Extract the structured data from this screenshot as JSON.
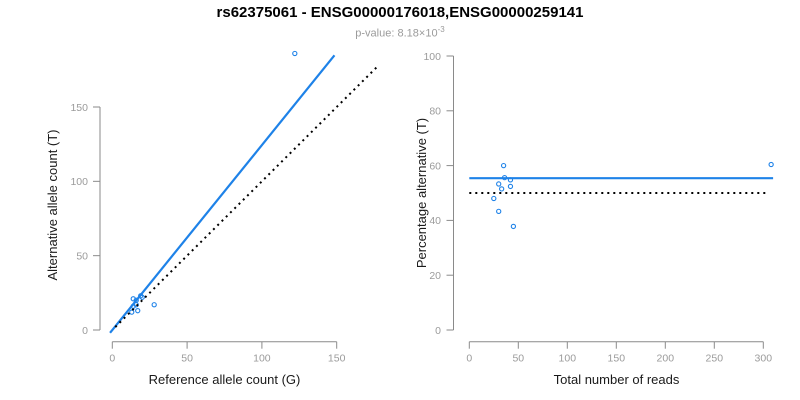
{
  "header": {
    "title": "rs62375061 - ENSG00000176018,ENSG00000259141",
    "pvalue_label": "p-value: ",
    "pvalue_mantissa": "8.18",
    "pvalue_times": "×10",
    "pvalue_exponent": "-3"
  },
  "colors": {
    "accent_blue": "#1e82e8",
    "dotted_black": "#000000",
    "axis_gray": "#8a8a8a",
    "tick_label_gray": "#9b9b9b"
  },
  "chart_data": [
    {
      "type": "scatter",
      "name": "allele-counts",
      "xlabel": "Reference allele count (G)",
      "ylabel": "Alternative allele count (T)",
      "xticks": [
        0,
        50,
        100,
        150
      ],
      "yticks": [
        0,
        50,
        100,
        150
      ],
      "xlim": [
        0,
        150
      ],
      "ylim": [
        0,
        150
      ],
      "grid": false,
      "point_style": "open-circle",
      "points": [
        [
          122,
          186
        ],
        [
          14,
          21
        ],
        [
          16,
          20
        ],
        [
          19,
          23
        ],
        [
          20,
          22
        ],
        [
          16,
          17
        ],
        [
          14,
          16
        ],
        [
          13,
          12
        ],
        [
          17,
          13
        ],
        [
          28,
          17
        ]
      ],
      "lines": [
        {
          "name": "fit-line",
          "style": "solid",
          "color": "blue",
          "slope": 1.244,
          "intercept": 0,
          "x_range": [
            -1.5,
            148.5
          ]
        },
        {
          "name": "identity-line",
          "style": "dotted",
          "color": "black",
          "slope": 1,
          "intercept": 0,
          "x_range": [
            2,
            178
          ]
        }
      ]
    },
    {
      "type": "scatter",
      "name": "percentage-vs-coverage",
      "xlabel": "Total number of reads",
      "ylabel": "Percentage alternative (T)",
      "xticks": [
        0,
        50,
        100,
        150,
        200,
        250,
        300
      ],
      "yticks": [
        0,
        20,
        40,
        60,
        80,
        100
      ],
      "xlim": [
        0,
        310
      ],
      "ylim": [
        0,
        100
      ],
      "grid": false,
      "point_style": "open-circle",
      "points": [
        [
          308,
          60.4
        ],
        [
          35,
          60.0
        ],
        [
          36,
          55.6
        ],
        [
          42,
          54.8
        ],
        [
          42,
          52.4
        ],
        [
          33,
          51.5
        ],
        [
          30,
          53.3
        ],
        [
          25,
          48.0
        ],
        [
          30,
          43.3
        ],
        [
          45,
          37.8
        ]
      ],
      "lines": [
        {
          "name": "mean-percentage-line",
          "style": "solid",
          "color": "blue",
          "y": 55.4,
          "x_range": [
            0,
            310
          ]
        },
        {
          "name": "null-50-percent-line",
          "style": "dotted",
          "color": "black",
          "y": 50,
          "x_range": [
            0,
            303
          ]
        }
      ]
    }
  ]
}
